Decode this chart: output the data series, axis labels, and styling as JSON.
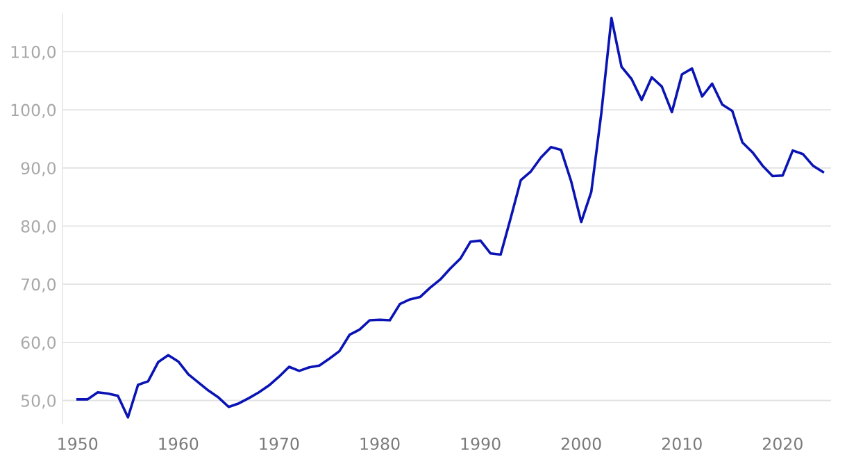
{
  "chart_data": {
    "type": "line",
    "x": [
      1950,
      1951,
      1952,
      1953,
      1954,
      1955,
      1956,
      1957,
      1958,
      1959,
      1960,
      1961,
      1962,
      1963,
      1964,
      1965,
      1966,
      1967,
      1968,
      1969,
      1970,
      1971,
      1972,
      1973,
      1974,
      1975,
      1976,
      1977,
      1978,
      1979,
      1980,
      1981,
      1982,
      1983,
      1984,
      1985,
      1986,
      1987,
      1988,
      1989,
      1990,
      1991,
      1992,
      1993,
      1994,
      1995,
      1996,
      1997,
      1998,
      1999,
      2000,
      2001,
      2002,
      2003,
      2004,
      2005,
      2006,
      2007,
      2008,
      2009,
      2010,
      2011,
      2012,
      2013,
      2014,
      2015,
      2016,
      2017,
      2018,
      2019,
      2020,
      2021,
      2022,
      2023,
      2024
    ],
    "series": [
      {
        "color": "#0a14b4",
        "values": [
          50.2,
          50.2,
          51.4,
          51.2,
          50.8,
          47.1,
          52.7,
          53.3,
          56.6,
          57.8,
          56.7,
          54.5,
          53.1,
          51.7,
          50.5,
          48.9,
          49.5,
          50.4,
          51.4,
          52.6,
          54.1,
          55.8,
          55.1,
          55.7,
          56.0,
          57.2,
          58.5,
          61.3,
          62.2,
          63.8,
          63.9,
          63.8,
          66.6,
          67.4,
          67.8,
          69.4,
          70.8,
          72.7,
          74.4,
          77.3,
          77.5,
          75.3,
          75.1,
          81.4,
          87.9,
          89.4,
          91.8,
          93.6,
          93.1,
          87.7,
          80.7,
          85.9,
          99.5,
          115.8,
          107.4,
          105.3,
          101.7,
          105.6,
          104.0,
          99.6,
          106.1,
          107.1,
          102.3,
          104.5,
          100.9,
          99.8,
          94.4,
          92.7,
          90.4,
          88.6,
          88.7,
          93.0,
          92.4,
          90.4,
          89.3
        ]
      }
    ],
    "xlim": [
      1948.5,
      2024.8
    ],
    "xticks": [
      1950,
      1960,
      1970,
      1980,
      1990,
      2000,
      2010,
      2020
    ],
    "yticks": [
      {
        "value": 50,
        "label": "50,0"
      },
      {
        "value": 60,
        "label": "60,0"
      },
      {
        "value": 70,
        "label": "70,0"
      },
      {
        "value": 80,
        "label": "80,0"
      },
      {
        "value": 90,
        "label": "90,0"
      },
      {
        "value": 100,
        "label": "100,0"
      },
      {
        "value": 110,
        "label": "110,0"
      }
    ],
    "ylim": [
      46,
      116.5
    ],
    "grid": "y",
    "marker": "none",
    "line_style": "solid"
  }
}
